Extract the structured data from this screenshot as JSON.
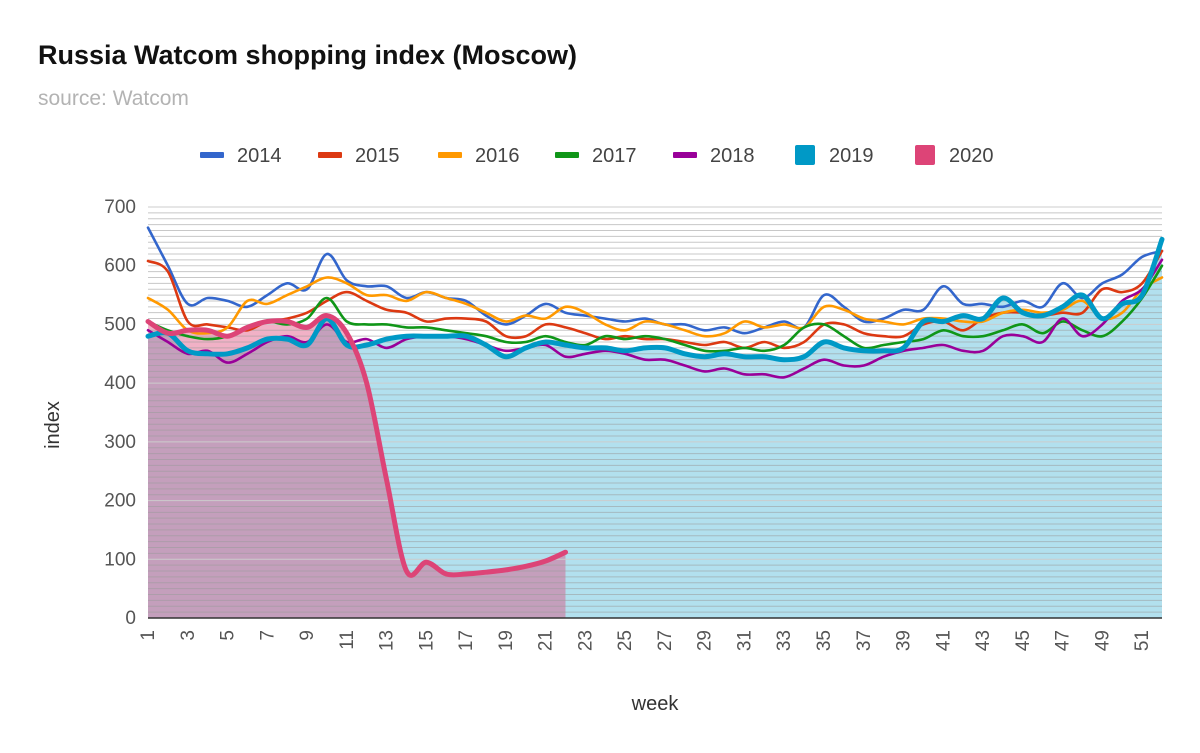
{
  "chart_data": {
    "type": "line",
    "title": "Russia Watcom shopping index (Moscow)",
    "subtitle": "source: Watcom",
    "xlabel": "week",
    "ylabel": "index",
    "ylim": [
      0,
      700
    ],
    "yticks": [
      0,
      100,
      200,
      300,
      400,
      500,
      600,
      700
    ],
    "xlim": [
      1,
      52
    ],
    "xticks": [
      1,
      3,
      5,
      7,
      9,
      11,
      13,
      15,
      17,
      19,
      21,
      23,
      25,
      27,
      29,
      31,
      33,
      35,
      37,
      39,
      41,
      43,
      45,
      47,
      49,
      51
    ],
    "grid": true,
    "legend_position": "top",
    "series": [
      {
        "name": "2014",
        "color": "#3366cc",
        "style": "line",
        "values": [
          665,
          600,
          535,
          545,
          540,
          530,
          550,
          570,
          560,
          620,
          575,
          565,
          565,
          545,
          555,
          545,
          540,
          515,
          500,
          515,
          535,
          520,
          515,
          510,
          505,
          510,
          500,
          500,
          490,
          495,
          485,
          495,
          505,
          495,
          550,
          530,
          505,
          510,
          525,
          525,
          565,
          535,
          535,
          530,
          540,
          530,
          570,
          545,
          570,
          585,
          615,
          625
        ]
      },
      {
        "name": "2015",
        "color": "#dc3912",
        "style": "line",
        "values": [
          608,
          590,
          505,
          500,
          495,
          490,
          505,
          510,
          520,
          540,
          555,
          540,
          525,
          520,
          505,
          510,
          510,
          505,
          480,
          480,
          500,
          495,
          485,
          475,
          480,
          475,
          475,
          470,
          465,
          470,
          460,
          470,
          460,
          470,
          500,
          500,
          485,
          480,
          480,
          500,
          505,
          490,
          510,
          520,
          520,
          515,
          520,
          520,
          560,
          555,
          570,
          625
        ]
      },
      {
        "name": "2016",
        "color": "#ff9900",
        "style": "line",
        "values": [
          545,
          525,
          490,
          485,
          495,
          540,
          535,
          550,
          565,
          580,
          570,
          550,
          550,
          540,
          555,
          545,
          535,
          520,
          505,
          515,
          510,
          530,
          520,
          500,
          490,
          505,
          500,
          490,
          480,
          485,
          505,
          495,
          500,
          495,
          530,
          525,
          510,
          505,
          500,
          510,
          510,
          505,
          505,
          520,
          525,
          520,
          525,
          540,
          510,
          520,
          560,
          580
        ]
      },
      {
        "name": "2017",
        "color": "#109618",
        "style": "line",
        "values": [
          505,
          490,
          480,
          475,
          480,
          495,
          505,
          500,
          510,
          545,
          505,
          500,
          500,
          495,
          495,
          490,
          485,
          480,
          470,
          470,
          480,
          470,
          465,
          480,
          475,
          480,
          475,
          465,
          455,
          455,
          460,
          455,
          465,
          495,
          500,
          480,
          460,
          465,
          470,
          475,
          490,
          480,
          480,
          490,
          500,
          485,
          505,
          490,
          480,
          505,
          545,
          600
        ]
      },
      {
        "name": "2018",
        "color": "#990099",
        "style": "line",
        "values": [
          490,
          470,
          450,
          455,
          435,
          450,
          470,
          480,
          470,
          500,
          470,
          475,
          460,
          475,
          480,
          480,
          475,
          465,
          455,
          460,
          465,
          445,
          450,
          455,
          450,
          440,
          440,
          430,
          420,
          425,
          415,
          415,
          410,
          425,
          440,
          430,
          430,
          445,
          455,
          460,
          465,
          455,
          455,
          480,
          480,
          470,
          510,
          480,
          500,
          540,
          560,
          610
        ]
      },
      {
        "name": "2019",
        "color": "#0099c6",
        "style": "area",
        "values": [
          480,
          485,
          455,
          450,
          450,
          460,
          475,
          475,
          465,
          510,
          465,
          465,
          475,
          480,
          480,
          480,
          480,
          465,
          445,
          460,
          470,
          465,
          460,
          460,
          455,
          460,
          460,
          450,
          445,
          450,
          445,
          445,
          440,
          445,
          470,
          460,
          455,
          455,
          460,
          505,
          505,
          515,
          510,
          545,
          520,
          515,
          530,
          550,
          510,
          535,
          550,
          645
        ]
      },
      {
        "name": "2020",
        "color": "#dd4477",
        "style": "area",
        "values": [
          505,
          485,
          490,
          490,
          480,
          495,
          505,
          505,
          495,
          515,
          485,
          400,
          235,
          80,
          95,
          75,
          75,
          78,
          82,
          88,
          97,
          112
        ]
      }
    ]
  }
}
